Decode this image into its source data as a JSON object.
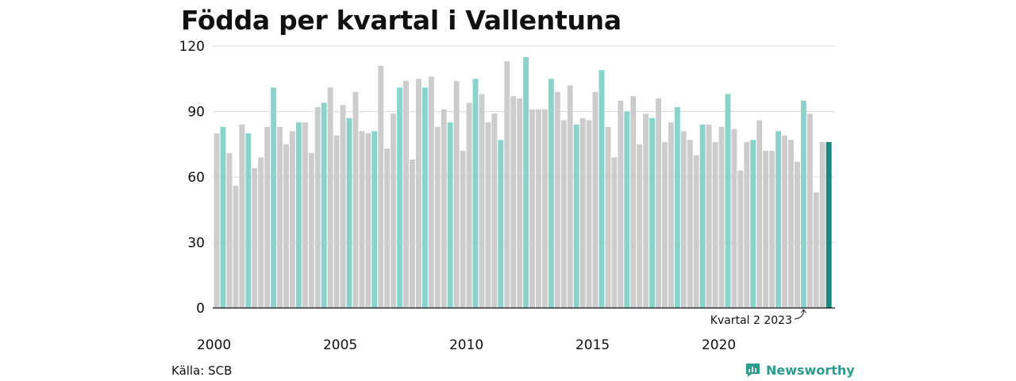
{
  "chart_data": {
    "type": "bar",
    "title": "Födda per kvartal i Vallentuna",
    "start_year": 2000,
    "x_tick_labels": [
      "2000",
      "2005",
      "2010",
      "2015",
      "2020"
    ],
    "y_ticks": [
      0,
      30,
      60,
      90,
      120
    ],
    "ylim": [
      0,
      120
    ],
    "grid": true,
    "values": [
      80,
      83,
      71,
      56,
      84,
      80,
      64,
      69,
      83,
      101,
      83,
      75,
      81,
      85,
      85,
      71,
      92,
      94,
      101,
      79,
      93,
      87,
      99,
      81,
      80,
      81,
      111,
      73,
      89,
      101,
      104,
      68,
      105,
      101,
      106,
      83,
      91,
      85,
      104,
      72,
      94,
      105,
      98,
      85,
      89,
      77,
      113,
      97,
      96,
      115,
      91,
      91,
      91,
      105,
      99,
      86,
      102,
      84,
      87,
      86,
      99,
      109,
      83,
      69,
      95,
      90,
      97,
      75,
      89,
      87,
      96,
      76,
      85,
      92,
      81,
      77,
      70,
      84,
      84,
      76,
      83,
      98,
      82,
      63,
      76,
      77,
      86,
      72,
      72,
      81,
      79,
      77,
      67,
      95,
      89,
      53,
      76,
      76
    ],
    "highlight_quarter": 2,
    "annotation": "Kvartal 2 2023",
    "colors": {
      "default": "#cccccc",
      "quarter2": "#88d4cd",
      "latest": "#1a8a80",
      "grid": "#dddddd",
      "axis": "#111111"
    }
  },
  "source_text": "Källa: SCB",
  "brand": {
    "name": "Newsworthy",
    "icon": "newsworthy-logo-icon",
    "color": "#2a9d8f"
  }
}
